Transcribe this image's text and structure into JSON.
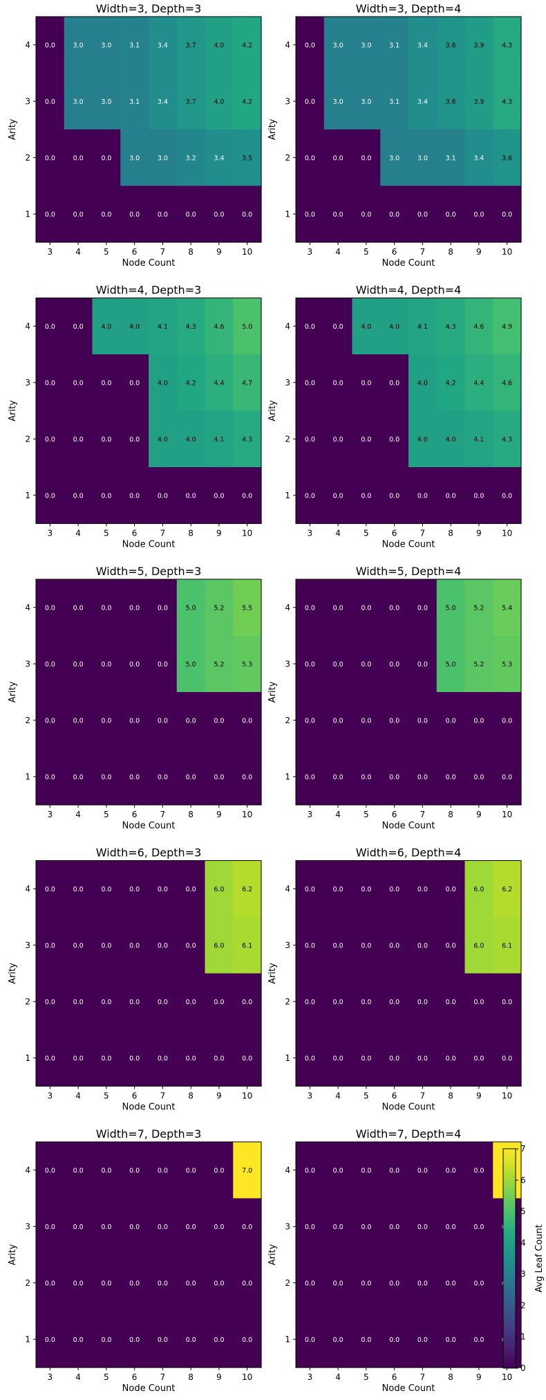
{
  "chart_data": {
    "type": "heatmap",
    "colorbar": {
      "label": "Avg Leaf Count",
      "range": [
        0,
        7
      ],
      "ticks": [
        "0",
        "1",
        "2",
        "3",
        "4",
        "5",
        "6",
        "7"
      ],
      "colormap": "viridis"
    },
    "panels": [
      {
        "title": "Width=3, Depth=3",
        "xlabel": "Node Count",
        "ylabel": "Arity",
        "x": [
          "3",
          "4",
          "5",
          "6",
          "7",
          "8",
          "9",
          "10"
        ],
        "y": [
          "4",
          "3",
          "2",
          "1"
        ],
        "values": [
          [
            0.0,
            3.0,
            3.0,
            3.1,
            3.4,
            3.7,
            4.0,
            4.2
          ],
          [
            0.0,
            3.0,
            3.0,
            3.1,
            3.4,
            3.7,
            4.0,
            4.2
          ],
          [
            0.0,
            0.0,
            0.0,
            3.0,
            3.0,
            3.2,
            3.4,
            3.5
          ],
          [
            0.0,
            0.0,
            0.0,
            0.0,
            0.0,
            0.0,
            0.0,
            0.0
          ]
        ]
      },
      {
        "title": "Width=3, Depth=4",
        "xlabel": "Node Count",
        "ylabel": "Arity",
        "x": [
          "3",
          "4",
          "5",
          "6",
          "7",
          "8",
          "9",
          "10"
        ],
        "y": [
          "4",
          "3",
          "2",
          "1"
        ],
        "values": [
          [
            0.0,
            3.0,
            3.0,
            3.1,
            3.4,
            3.6,
            3.9,
            4.3
          ],
          [
            0.0,
            3.0,
            3.0,
            3.1,
            3.4,
            3.6,
            3.9,
            4.3
          ],
          [
            0.0,
            0.0,
            0.0,
            3.0,
            3.0,
            3.1,
            3.4,
            3.6
          ],
          [
            0.0,
            0.0,
            0.0,
            0.0,
            0.0,
            0.0,
            0.0,
            0.0
          ]
        ]
      },
      {
        "title": "Width=4, Depth=3",
        "xlabel": "Node Count",
        "ylabel": "Arity",
        "x": [
          "3",
          "4",
          "5",
          "6",
          "7",
          "8",
          "9",
          "10"
        ],
        "y": [
          "4",
          "3",
          "2",
          "1"
        ],
        "values": [
          [
            0.0,
            0.0,
            4.0,
            4.0,
            4.1,
            4.3,
            4.6,
            5.0
          ],
          [
            0.0,
            0.0,
            0.0,
            0.0,
            4.0,
            4.2,
            4.4,
            4.7
          ],
          [
            0.0,
            0.0,
            0.0,
            0.0,
            4.0,
            4.0,
            4.1,
            4.3
          ],
          [
            0.0,
            0.0,
            0.0,
            0.0,
            0.0,
            0.0,
            0.0,
            0.0
          ]
        ]
      },
      {
        "title": "Width=4, Depth=4",
        "xlabel": "Node Count",
        "ylabel": "Arity",
        "x": [
          "3",
          "4",
          "5",
          "6",
          "7",
          "8",
          "9",
          "10"
        ],
        "y": [
          "4",
          "3",
          "2",
          "1"
        ],
        "values": [
          [
            0.0,
            0.0,
            4.0,
            4.0,
            4.1,
            4.3,
            4.6,
            4.9
          ],
          [
            0.0,
            0.0,
            0.0,
            0.0,
            4.0,
            4.2,
            4.4,
            4.6
          ],
          [
            0.0,
            0.0,
            0.0,
            0.0,
            4.0,
            4.0,
            4.1,
            4.3
          ],
          [
            0.0,
            0.0,
            0.0,
            0.0,
            0.0,
            0.0,
            0.0,
            0.0
          ]
        ]
      },
      {
        "title": "Width=5, Depth=3",
        "xlabel": "Node Count",
        "ylabel": "Arity",
        "x": [
          "3",
          "4",
          "5",
          "6",
          "7",
          "8",
          "9",
          "10"
        ],
        "y": [
          "4",
          "3",
          "2",
          "1"
        ],
        "values": [
          [
            0.0,
            0.0,
            0.0,
            0.0,
            0.0,
            5.0,
            5.2,
            5.5
          ],
          [
            0.0,
            0.0,
            0.0,
            0.0,
            0.0,
            5.0,
            5.2,
            5.3
          ],
          [
            0.0,
            0.0,
            0.0,
            0.0,
            0.0,
            0.0,
            0.0,
            0.0
          ],
          [
            0.0,
            0.0,
            0.0,
            0.0,
            0.0,
            0.0,
            0.0,
            0.0
          ]
        ]
      },
      {
        "title": "Width=5, Depth=4",
        "xlabel": "Node Count",
        "ylabel": "Arity",
        "x": [
          "3",
          "4",
          "5",
          "6",
          "7",
          "8",
          "9",
          "10"
        ],
        "y": [
          "4",
          "3",
          "2",
          "1"
        ],
        "values": [
          [
            0.0,
            0.0,
            0.0,
            0.0,
            0.0,
            5.0,
            5.2,
            5.4
          ],
          [
            0.0,
            0.0,
            0.0,
            0.0,
            0.0,
            5.0,
            5.2,
            5.3
          ],
          [
            0.0,
            0.0,
            0.0,
            0.0,
            0.0,
            0.0,
            0.0,
            0.0
          ],
          [
            0.0,
            0.0,
            0.0,
            0.0,
            0.0,
            0.0,
            0.0,
            0.0
          ]
        ]
      },
      {
        "title": "Width=6, Depth=3",
        "xlabel": "Node Count",
        "ylabel": "Arity",
        "x": [
          "3",
          "4",
          "5",
          "6",
          "7",
          "8",
          "9",
          "10"
        ],
        "y": [
          "4",
          "3",
          "2",
          "1"
        ],
        "values": [
          [
            0.0,
            0.0,
            0.0,
            0.0,
            0.0,
            0.0,
            6.0,
            6.2
          ],
          [
            0.0,
            0.0,
            0.0,
            0.0,
            0.0,
            0.0,
            6.0,
            6.1
          ],
          [
            0.0,
            0.0,
            0.0,
            0.0,
            0.0,
            0.0,
            0.0,
            0.0
          ],
          [
            0.0,
            0.0,
            0.0,
            0.0,
            0.0,
            0.0,
            0.0,
            0.0
          ]
        ]
      },
      {
        "title": "Width=6, Depth=4",
        "xlabel": "Node Count",
        "ylabel": "Arity",
        "x": [
          "3",
          "4",
          "5",
          "6",
          "7",
          "8",
          "9",
          "10"
        ],
        "y": [
          "4",
          "3",
          "2",
          "1"
        ],
        "values": [
          [
            0.0,
            0.0,
            0.0,
            0.0,
            0.0,
            0.0,
            6.0,
            6.2
          ],
          [
            0.0,
            0.0,
            0.0,
            0.0,
            0.0,
            0.0,
            6.0,
            6.1
          ],
          [
            0.0,
            0.0,
            0.0,
            0.0,
            0.0,
            0.0,
            0.0,
            0.0
          ],
          [
            0.0,
            0.0,
            0.0,
            0.0,
            0.0,
            0.0,
            0.0,
            0.0
          ]
        ]
      },
      {
        "title": "Width=7, Depth=3",
        "xlabel": "Node Count",
        "ylabel": "Arity",
        "x": [
          "3",
          "4",
          "5",
          "6",
          "7",
          "8",
          "9",
          "10"
        ],
        "y": [
          "4",
          "3",
          "2",
          "1"
        ],
        "values": [
          [
            0.0,
            0.0,
            0.0,
            0.0,
            0.0,
            0.0,
            0.0,
            7.0
          ],
          [
            0.0,
            0.0,
            0.0,
            0.0,
            0.0,
            0.0,
            0.0,
            0.0
          ],
          [
            0.0,
            0.0,
            0.0,
            0.0,
            0.0,
            0.0,
            0.0,
            0.0
          ],
          [
            0.0,
            0.0,
            0.0,
            0.0,
            0.0,
            0.0,
            0.0,
            0.0
          ]
        ]
      },
      {
        "title": "Width=7, Depth=4",
        "xlabel": "Node Count",
        "ylabel": "Arity",
        "x": [
          "3",
          "4",
          "5",
          "6",
          "7",
          "8",
          "9",
          "10"
        ],
        "y": [
          "4",
          "3",
          "2",
          "1"
        ],
        "values": [
          [
            0.0,
            0.0,
            0.0,
            0.0,
            0.0,
            0.0,
            0.0,
            7.0
          ],
          [
            0.0,
            0.0,
            0.0,
            0.0,
            0.0,
            0.0,
            0.0,
            0.0
          ],
          [
            0.0,
            0.0,
            0.0,
            0.0,
            0.0,
            0.0,
            0.0,
            0.0
          ],
          [
            0.0,
            0.0,
            0.0,
            0.0,
            0.0,
            0.0,
            0.0,
            0.0
          ]
        ]
      }
    ]
  }
}
